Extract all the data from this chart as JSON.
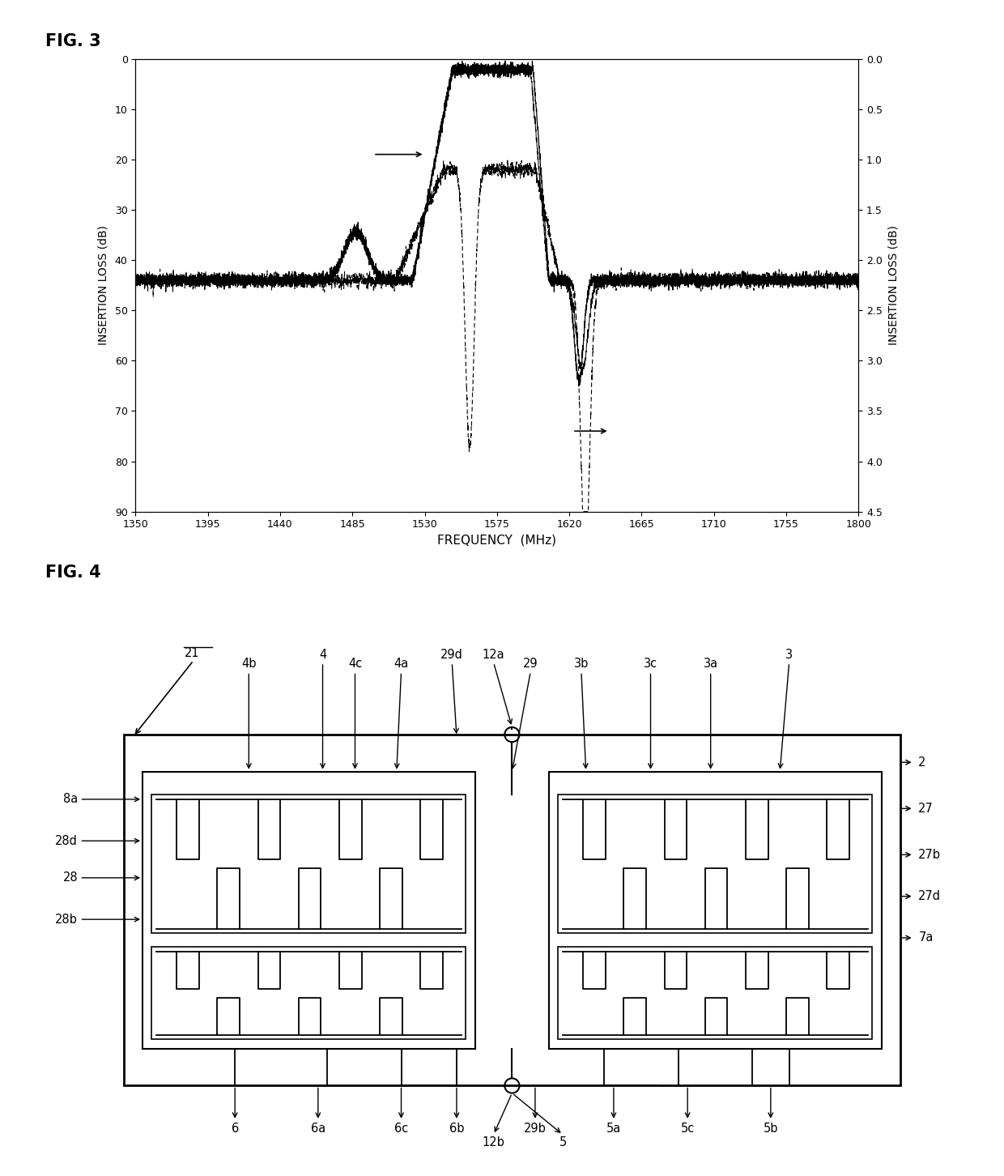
{
  "fig3_title": "FIG. 3",
  "fig4_title": "FIG. 4",
  "left_ylabel": "INSERTION LOSS (dB)",
  "right_ylabel": "INSERTION LOSS (dB)",
  "xlabel": "FREQUENCY  (MHz)",
  "xlim": [
    1350,
    1800
  ],
  "ylim_left": [
    90,
    0
  ],
  "ylim_right": [
    4.5,
    0
  ],
  "xticks": [
    1350,
    1395,
    1440,
    1485,
    1530,
    1575,
    1620,
    1665,
    1710,
    1755,
    1800
  ],
  "yticks_left": [
    0,
    10,
    20,
    30,
    40,
    50,
    60,
    70,
    80,
    90
  ],
  "yticks_right": [
    0,
    0.5,
    1,
    1.5,
    2,
    2.5,
    3,
    3.5,
    4,
    4.5
  ],
  "bg_color": "#ffffff",
  "line_color": "#000000"
}
